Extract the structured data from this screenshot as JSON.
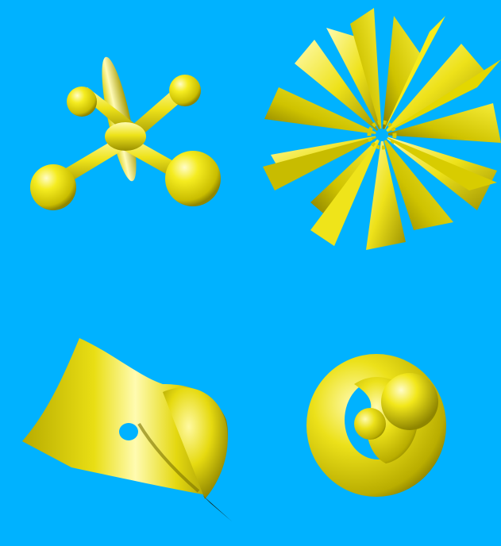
{
  "scene": {
    "background_color": "#00b2ff",
    "surface_color": "#f2ea1a",
    "surface_shadow_color": "#8f8600",
    "surface_highlight_color": "#fffcc8"
  },
  "panels": [
    {
      "name": "jacks-surface",
      "position": "top-left"
    },
    {
      "name": "star-blade-surface",
      "position": "top-right"
    },
    {
      "name": "saddle-sheet-surface",
      "position": "bottom-left"
    },
    {
      "name": "knotted-torus-surface",
      "position": "bottom-right"
    }
  ]
}
